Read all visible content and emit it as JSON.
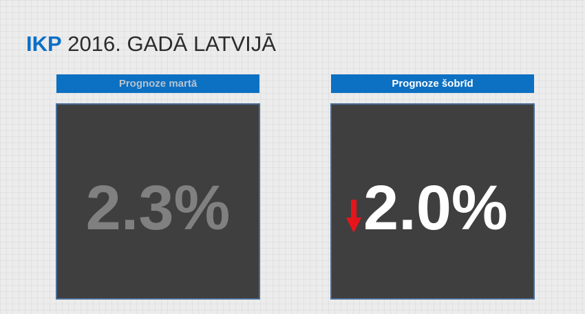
{
  "title": {
    "accent": "IKP",
    "rest": " 2016. GADĀ LATVIJĀ"
  },
  "panels": {
    "left": {
      "header": "Prognoze martā",
      "value": "2.3%"
    },
    "right": {
      "header": "Prognoze šobrīd",
      "value": "2.0%",
      "trend_icon": "arrow-down-icon",
      "trend_color": "#e8141b"
    }
  },
  "colors": {
    "accent": "#0c70c3",
    "panel_bg": "#3f3f3f",
    "panel_border": "#4a6d98",
    "muted_value": "#808080"
  }
}
